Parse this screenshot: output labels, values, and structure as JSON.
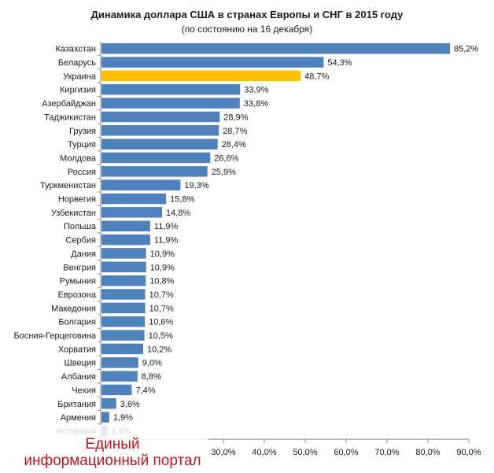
{
  "chart_data": {
    "type": "bar",
    "orientation": "horizontal",
    "title": "Динамика доллара США в странах Европы и СНГ в 2015 году",
    "subtitle": "(по состоянию на 16 декабря)",
    "categories": [
      "Казахстан",
      "Беларусь",
      "Украина",
      "Киргизия",
      "Азербайджан",
      "Таджикистан",
      "Грузия",
      "Турция",
      "Молдова",
      "Россия",
      "Туркменистан",
      "Норвегия",
      "Узбекистан",
      "Польша",
      "Сербия",
      "Дания",
      "Венгрия",
      "Румыния",
      "Еврозона",
      "Македония",
      "Болгария",
      "Босния-Герцеговина",
      "Хорватия",
      "Швеция",
      "Албания",
      "Чехия",
      "Британия",
      "Армения",
      "Исландия"
    ],
    "values": [
      85.2,
      54.3,
      48.7,
      33.9,
      33.8,
      28.9,
      28.7,
      28.4,
      26.6,
      25.9,
      19.3,
      15.8,
      14.8,
      11.9,
      11.9,
      10.9,
      10.9,
      10.8,
      10.7,
      10.7,
      10.6,
      10.5,
      10.2,
      9.0,
      8.8,
      7.4,
      3.6,
      1.9,
      1.4
    ],
    "value_labels": [
      "85,2%",
      "54,3%",
      "48,7%",
      "33,9%",
      "33,8%",
      "28,9%",
      "28,7%",
      "28,4%",
      "26,6%",
      "25,9%",
      "19,3%",
      "15,8%",
      "14,8%",
      "11,9%",
      "11,9%",
      "10,9%",
      "10,9%",
      "10,8%",
      "10,7%",
      "10,7%",
      "10,6%",
      "10,5%",
      "10,2%",
      "9,0%",
      "8,8%",
      "7,4%",
      "3,6%",
      "1,9%",
      "1,4%"
    ],
    "highlight_category": "Украина",
    "colors": {
      "bar": "#4f81bd",
      "highlight": "#ffc000",
      "axis": "#868686"
    },
    "xlim": [
      0,
      90
    ],
    "x_ticks": [
      30,
      40,
      50,
      60,
      70,
      80,
      90
    ],
    "x_tick_labels": [
      "30,0%",
      "40,0%",
      "50,0%",
      "60,0%",
      "70,0%",
      "80,0%",
      "90,0%"
    ],
    "xlabel": "",
    "ylabel": "",
    "grid": false
  },
  "watermark": {
    "line1": "Единый",
    "line2": "информационный портал",
    "color": "#c0141c"
  }
}
